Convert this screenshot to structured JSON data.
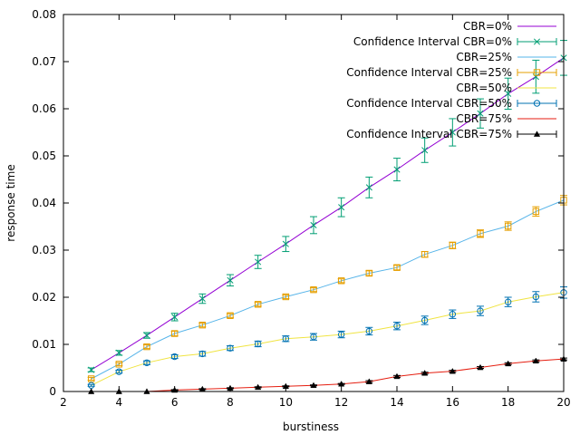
{
  "chart_data": {
    "type": "line",
    "title": "",
    "xlabel": "burstiness",
    "ylabel": "response time",
    "xlim": [
      2,
      20
    ],
    "ylim": [
      0,
      0.08
    ],
    "xticks": [
      "2",
      "4",
      "6",
      "8",
      "10",
      "12",
      "14",
      "16",
      "18",
      "20"
    ],
    "yticks": [
      "0",
      "0.01",
      "0.02",
      "0.03",
      "0.04",
      "0.05",
      "0.06",
      "0.07",
      "0.08"
    ],
    "grid": false,
    "legend_position": "top-right",
    "x": [
      3,
      4,
      5,
      6,
      7,
      8,
      9,
      10,
      11,
      12,
      13,
      14,
      15,
      16,
      17,
      18,
      19,
      20
    ],
    "series": [
      {
        "line_name": "CBR=0%",
        "ci_name": "Confidence Interval CBR=0%",
        "line_color": "#9400d3",
        "ci_color": "#009e73",
        "marker": "x",
        "values": [
          0.0046,
          0.0082,
          0.0119,
          0.0158,
          0.0197,
          0.0236,
          0.0275,
          0.0313,
          0.0353,
          0.0391,
          0.0433,
          0.0471,
          0.0512,
          0.055,
          0.059,
          0.0632,
          0.0668,
          0.0708
        ],
        "errors": [
          0.0004,
          0.0005,
          0.0006,
          0.0008,
          0.001,
          0.0012,
          0.0014,
          0.0016,
          0.0018,
          0.002,
          0.0022,
          0.0024,
          0.0026,
          0.0029,
          0.0031,
          0.0033,
          0.0035,
          0.0037
        ]
      },
      {
        "line_name": "CBR=25%",
        "ci_name": "Confidence Interval CBR=25%",
        "line_color": "#56b4e9",
        "ci_color": "#e69f00",
        "marker": "square",
        "values": [
          0.0027,
          0.0058,
          0.0095,
          0.0123,
          0.0141,
          0.0161,
          0.0185,
          0.0201,
          0.0216,
          0.0235,
          0.0251,
          0.0263,
          0.0291,
          0.031,
          0.0335,
          0.0351,
          0.0382,
          0.0406
        ],
        "errors": [
          0.0003,
          0.0003,
          0.0004,
          0.0005,
          0.0004,
          0.0004,
          0.0004,
          0.0004,
          0.0004,
          0.0004,
          0.0005,
          0.0005,
          0.0006,
          0.0007,
          0.0008,
          0.0009,
          0.001,
          0.001
        ]
      },
      {
        "line_name": "CBR=50%",
        "ci_name": "Confidence Interval CBR=50%",
        "line_color": "#f0e442",
        "ci_color": "#0072b2",
        "marker": "circle",
        "values": [
          0.0013,
          0.0042,
          0.0061,
          0.0074,
          0.008,
          0.0092,
          0.0101,
          0.0112,
          0.0116,
          0.0121,
          0.0128,
          0.0139,
          0.0151,
          0.0164,
          0.0171,
          0.019,
          0.0201,
          0.021
        ],
        "errors": [
          0.0002,
          0.0003,
          0.0004,
          0.0004,
          0.0005,
          0.0005,
          0.0006,
          0.0006,
          0.0007,
          0.0007,
          0.0008,
          0.0008,
          0.0009,
          0.0009,
          0.001,
          0.001,
          0.0011,
          0.0012
        ]
      },
      {
        "line_name": "CBR=75%",
        "ci_name": "Confidence Interval CBR=75%",
        "line_color": "#e51e10",
        "ci_color": "#000000",
        "marker": "triangle",
        "values": [
          0.0,
          0.0,
          0.0,
          0.0003,
          0.0005,
          0.0007,
          0.0009,
          0.0011,
          0.0013,
          0.0016,
          0.0021,
          0.0032,
          0.0039,
          0.0043,
          0.0051,
          0.0059,
          0.0065,
          0.0069
        ],
        "errors": [
          0.0,
          0.0,
          0.0,
          0.0001,
          0.0001,
          0.0001,
          0.0001,
          0.0001,
          0.0001,
          0.0001,
          0.0002,
          0.0002,
          0.0002,
          0.0002,
          0.0002,
          0.0002,
          0.0002,
          0.0002
        ]
      }
    ]
  }
}
